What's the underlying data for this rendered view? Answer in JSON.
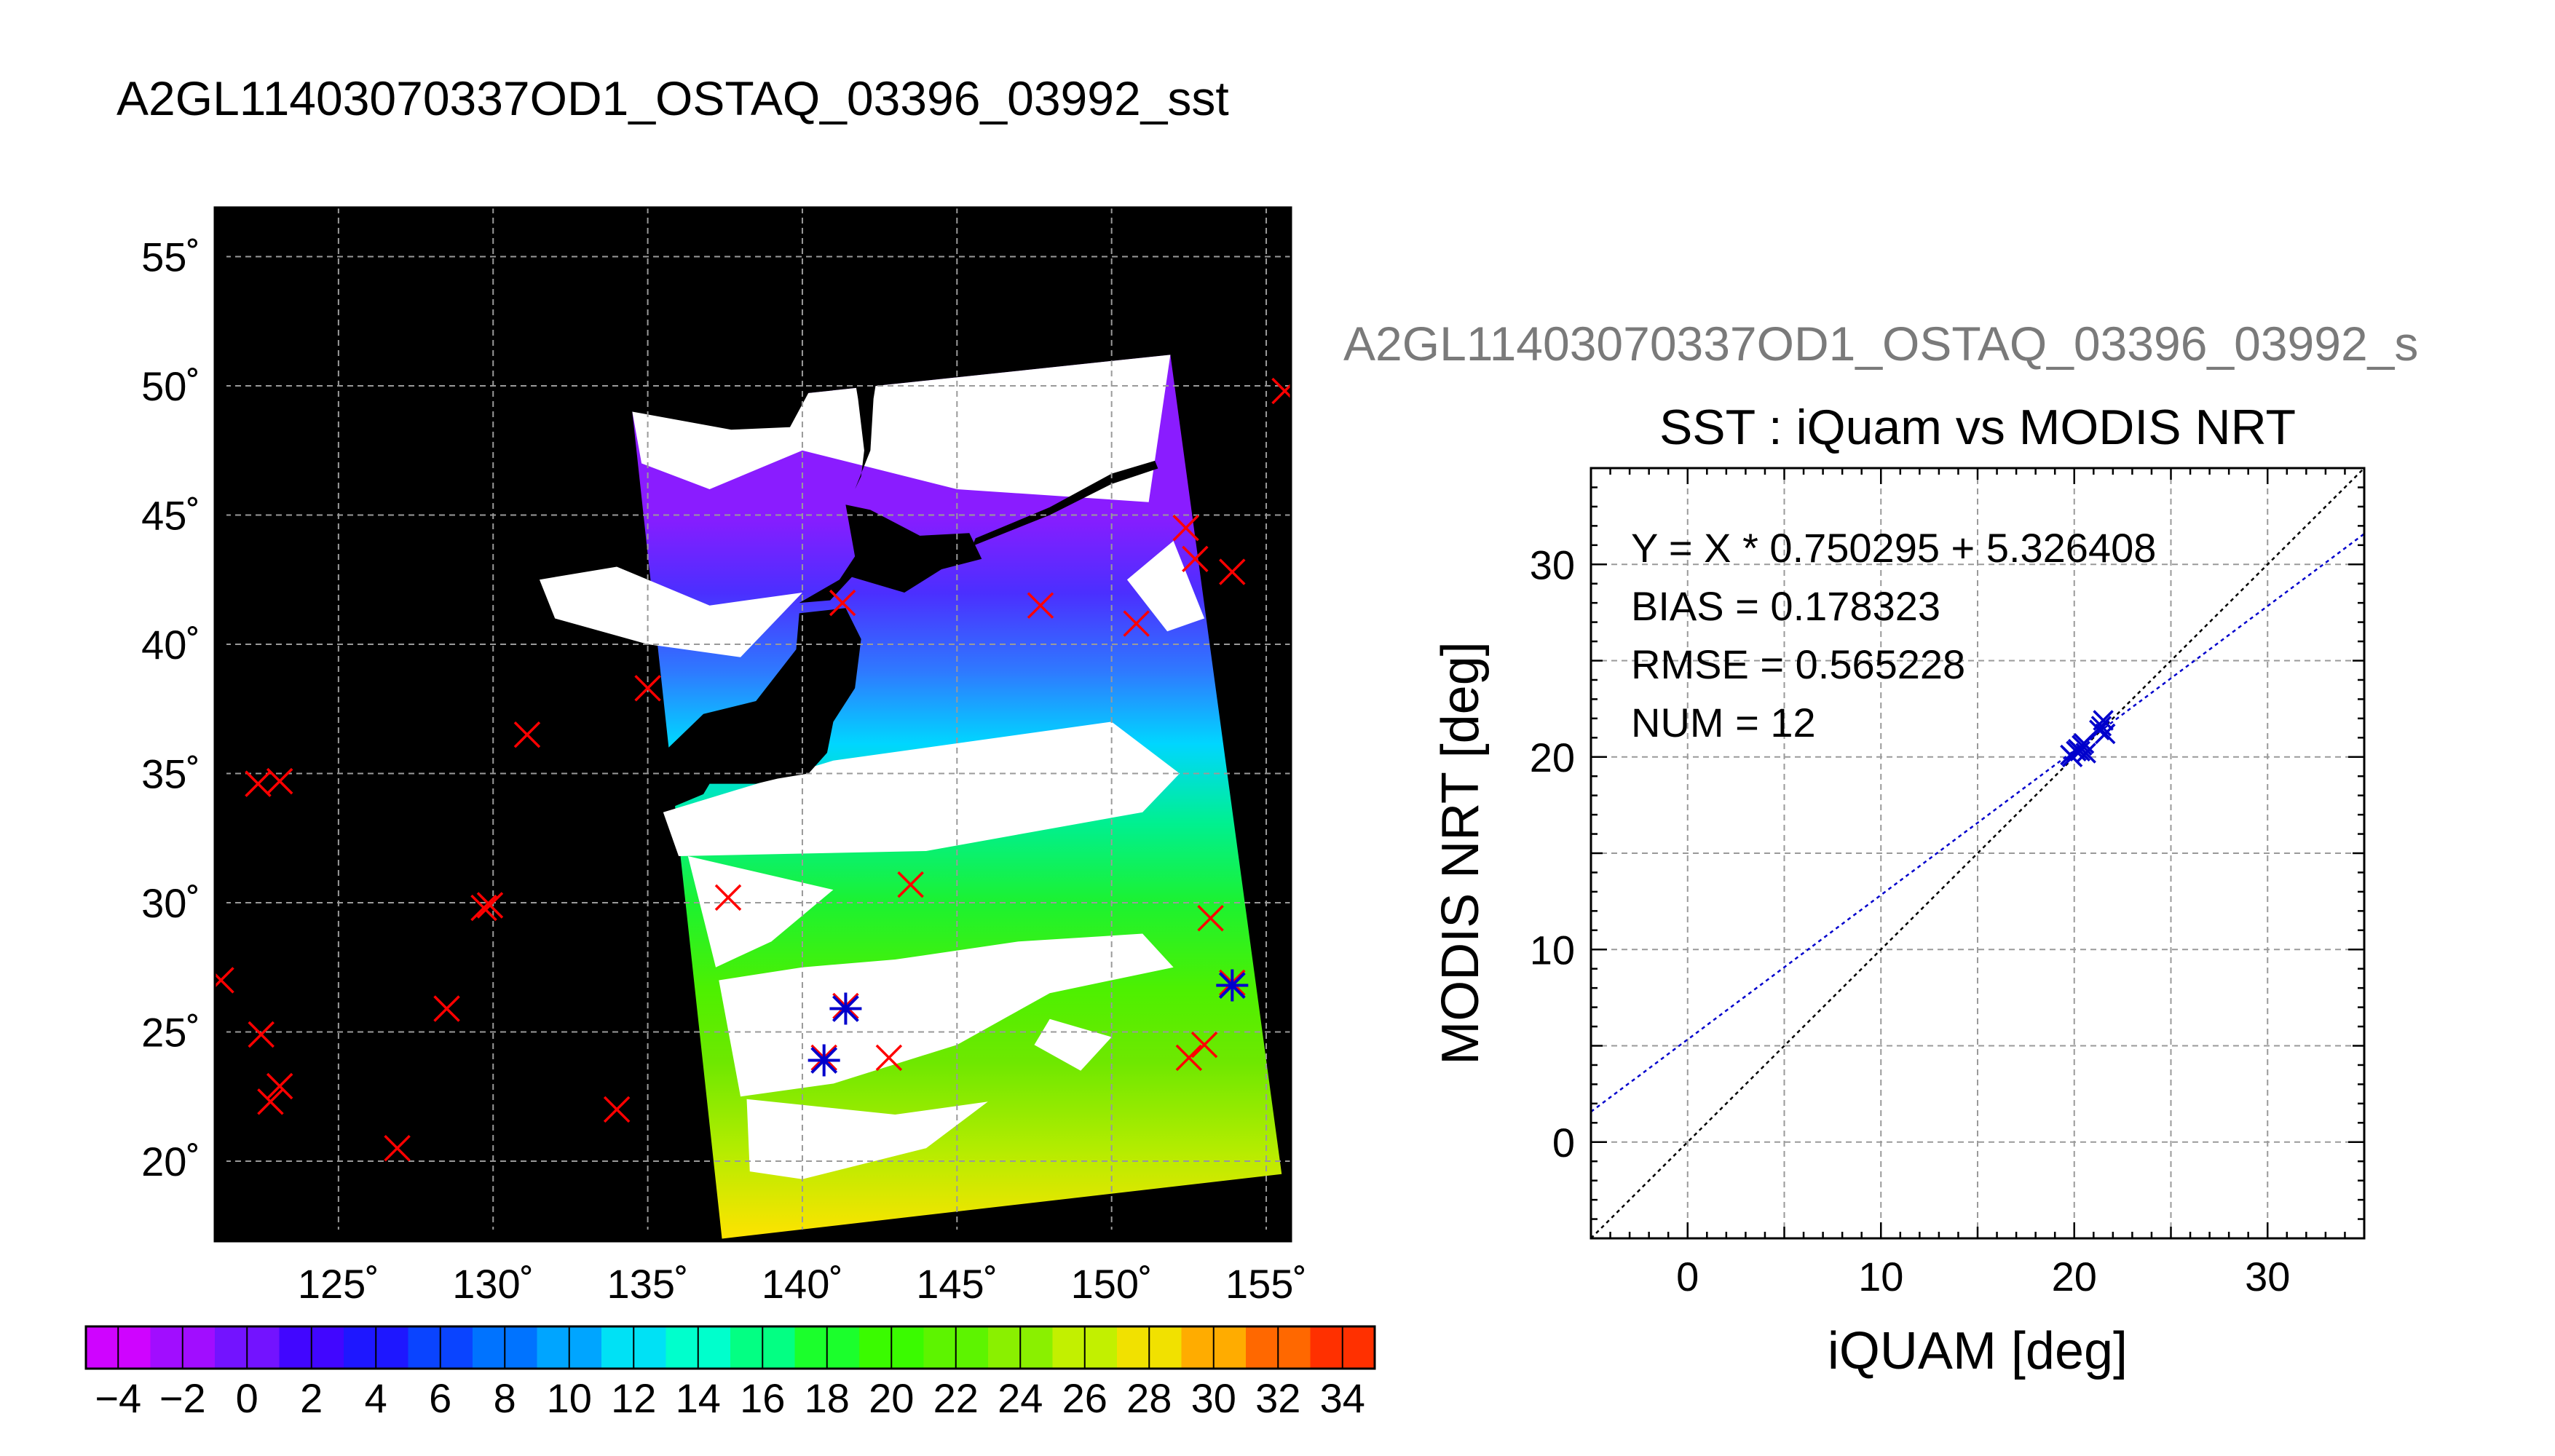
{
  "page": {
    "title": "A2GL11403070337OD1_OSTAQ_03396_03992_sst",
    "subtitle": "A2GL11403070337OD1_OSTAQ_03396_03992_s"
  },
  "colors": {
    "land": "#000000",
    "buoy_marker": "#ff0000",
    "match_marker": "#0000cc",
    "fit_line": "#0000cc",
    "identity_line": "#000000",
    "subtitle_text": "#7a7a7a"
  },
  "chart_data": [
    {
      "type": "map",
      "projection": "lat-lon",
      "title": "",
      "lon_range": [
        121,
        155.8
      ],
      "lat_range": [
        16.9,
        56.9
      ],
      "lon_ticks": [
        125,
        130,
        135,
        140,
        145,
        150,
        155
      ],
      "lat_ticks": [
        20,
        25,
        30,
        35,
        40,
        45,
        50,
        55
      ],
      "lon_tick_labels": [
        "125˚",
        "130˚",
        "135˚",
        "140˚",
        "145˚",
        "150˚",
        "155˚"
      ],
      "lat_tick_labels": [
        "20˚",
        "25˚",
        "30˚",
        "35˚",
        "40˚",
        "45˚",
        "50˚",
        "55˚"
      ],
      "grid": true,
      "red_x_markers": [
        {
          "lon": 155.6,
          "lat": 49.8
        },
        {
          "lon": 152.4,
          "lat": 44.5
        },
        {
          "lon": 152.7,
          "lat": 43.3
        },
        {
          "lon": 153.9,
          "lat": 42.8
        },
        {
          "lon": 147.7,
          "lat": 41.5
        },
        {
          "lon": 150.8,
          "lat": 40.8
        },
        {
          "lon": 141.3,
          "lat": 41.6
        },
        {
          "lon": 135.0,
          "lat": 38.3
        },
        {
          "lon": 131.1,
          "lat": 36.5
        },
        {
          "lon": 122.4,
          "lat": 34.6
        },
        {
          "lon": 123.1,
          "lat": 34.7
        },
        {
          "lon": 137.6,
          "lat": 30.2
        },
        {
          "lon": 143.5,
          "lat": 30.7
        },
        {
          "lon": 129.7,
          "lat": 29.8
        },
        {
          "lon": 129.9,
          "lat": 29.9
        },
        {
          "lon": 153.2,
          "lat": 29.4
        },
        {
          "lon": 121.2,
          "lat": 27.0
        },
        {
          "lon": 153.9,
          "lat": 26.9
        },
        {
          "lon": 128.5,
          "lat": 25.9
        },
        {
          "lon": 141.4,
          "lat": 26.0
        },
        {
          "lon": 122.5,
          "lat": 24.9
        },
        {
          "lon": 153.0,
          "lat": 24.5
        },
        {
          "lon": 152.5,
          "lat": 24.0
        },
        {
          "lon": 142.8,
          "lat": 24.0
        },
        {
          "lon": 140.7,
          "lat": 24.0
        },
        {
          "lon": 123.1,
          "lat": 22.9
        },
        {
          "lon": 122.8,
          "lat": 22.3
        },
        {
          "lon": 134.0,
          "lat": 22.0
        },
        {
          "lon": 126.9,
          "lat": 20.5
        }
      ],
      "blue_star_markers": [
        {
          "lon": 141.4,
          "lat": 25.9
        },
        {
          "lon": 140.7,
          "lat": 23.9
        },
        {
          "lon": 153.9,
          "lat": 26.8
        }
      ],
      "sst_region_corners": [
        {
          "lon": 134.5,
          "lat": 49.0
        },
        {
          "lon": 151.9,
          "lat": 51.2
        },
        {
          "lon": 155.5,
          "lat": 19.5
        },
        {
          "lon": 137.4,
          "lat": 17.0
        }
      ]
    },
    {
      "type": "colorbar",
      "title": "",
      "min": -5,
      "max": 35,
      "step": 2,
      "tick_values": [
        -4,
        -2,
        0,
        2,
        4,
        6,
        8,
        10,
        12,
        14,
        16,
        18,
        20,
        22,
        24,
        26,
        28,
        30,
        32,
        34
      ],
      "tick_labels": [
        "−4",
        "−2",
        "0",
        "2",
        "4",
        "6",
        "8",
        "10",
        "12",
        "14",
        "16",
        "18",
        "20",
        "22",
        "24",
        "26",
        "28",
        "30",
        "32",
        "34"
      ]
    },
    {
      "type": "scatter",
      "title": "SST : iQuam vs MODIS NRT",
      "xlabel": "iQUAM [deg]",
      "ylabel": "MODIS NRT [deg]",
      "xlim": [
        -5,
        35
      ],
      "ylim": [
        -5,
        35
      ],
      "x_ticks": [
        0,
        10,
        20,
        30
      ],
      "y_ticks": [
        0,
        10,
        20,
        30
      ],
      "x_tick_labels": [
        "0",
        "10",
        "20",
        "30"
      ],
      "y_tick_labels": [
        "0",
        "10",
        "20",
        "30"
      ],
      "grid": true,
      "annotations": [
        "Y = X * 0.750295 + 5.326408",
        "BIAS = 0.178323",
        "RMSE = 0.565228",
        "NUM = 12"
      ],
      "fit": {
        "slope": 0.750295,
        "intercept": 5.326408
      },
      "identity_line": true,
      "series": [
        {
          "points": [
            {
              "x": 19.8,
              "y": 20.1
            },
            {
              "x": 20.2,
              "y": 20.4
            },
            {
              "x": 20.4,
              "y": 20.6
            },
            {
              "x": 20.6,
              "y": 20.2
            },
            {
              "x": 20.3,
              "y": 20.3
            },
            {
              "x": 21.3,
              "y": 21.4
            },
            {
              "x": 21.5,
              "y": 21.9
            },
            {
              "x": 21.6,
              "y": 21.2
            },
            {
              "x": 20.5,
              "y": 20.7
            },
            {
              "x": 19.9,
              "y": 20.0
            },
            {
              "x": 21.4,
              "y": 21.6
            },
            {
              "x": 20.1,
              "y": 20.3
            }
          ]
        }
      ]
    }
  ]
}
